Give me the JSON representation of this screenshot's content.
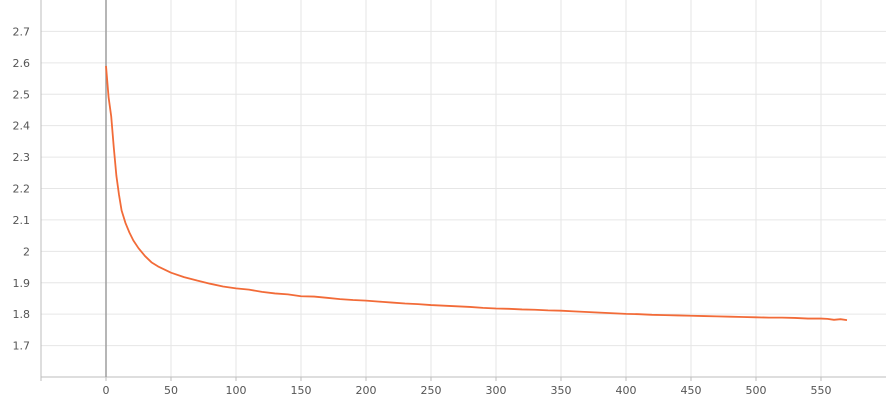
{
  "chart_data": {
    "type": "line",
    "title": "",
    "xlabel": "",
    "ylabel": "",
    "xlim": [
      -50,
      600
    ],
    "ylim": [
      1.6,
      2.8
    ],
    "x_ticks": [
      0,
      50,
      100,
      150,
      200,
      250,
      300,
      350,
      400,
      450,
      500,
      550
    ],
    "y_ticks": [
      1.7,
      1.8,
      1.9,
      2,
      2.1,
      2.2,
      2.3,
      2.4,
      2.5,
      2.6,
      2.7
    ],
    "x_tick_labels": [
      "0",
      "50",
      "100",
      "150",
      "200",
      "250",
      "300",
      "350",
      "400",
      "450",
      "500",
      "550"
    ],
    "y_tick_labels": [
      "1.7",
      "1.8",
      "1.9",
      "2",
      "2.1",
      "2.2",
      "2.3",
      "2.4",
      "2.5",
      "2.6",
      "2.7"
    ],
    "grid": true,
    "series": [
      {
        "color": "#f26b38",
        "x": [
          0,
          2,
          4,
          6,
          8,
          10,
          12,
          15,
          18,
          21,
          25,
          30,
          35,
          40,
          45,
          50,
          60,
          70,
          80,
          90,
          100,
          110,
          120,
          130,
          140,
          150,
          160,
          170,
          180,
          190,
          200,
          210,
          220,
          230,
          240,
          250,
          260,
          270,
          280,
          290,
          300,
          310,
          320,
          330,
          340,
          350,
          360,
          370,
          380,
          390,
          400,
          410,
          420,
          430,
          440,
          450,
          460,
          470,
          480,
          490,
          500,
          510,
          520,
          530,
          540,
          550,
          555,
          560,
          565,
          570
        ],
        "y": [
          2.59,
          2.49,
          2.43,
          2.33,
          2.24,
          2.18,
          2.13,
          2.09,
          2.06,
          2.035,
          2.01,
          1.985,
          1.965,
          1.952,
          1.942,
          1.932,
          1.918,
          1.907,
          1.897,
          1.888,
          1.882,
          1.878,
          1.871,
          1.866,
          1.863,
          1.857,
          1.856,
          1.852,
          1.848,
          1.845,
          1.843,
          1.84,
          1.837,
          1.834,
          1.832,
          1.829,
          1.827,
          1.825,
          1.823,
          1.82,
          1.818,
          1.817,
          1.815,
          1.814,
          1.812,
          1.811,
          1.809,
          1.807,
          1.805,
          1.803,
          1.801,
          1.8,
          1.798,
          1.797,
          1.796,
          1.795,
          1.794,
          1.793,
          1.792,
          1.791,
          1.79,
          1.789,
          1.789,
          1.788,
          1.786,
          1.786,
          1.785,
          1.782,
          1.784,
          1.781
        ]
      }
    ]
  }
}
